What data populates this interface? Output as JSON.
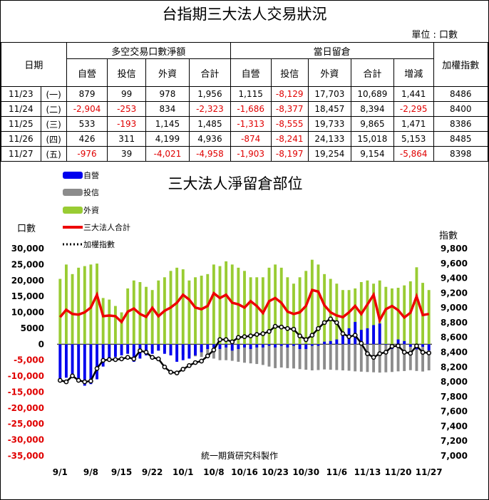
{
  "title": "台指期三大法人交易狀況",
  "unit": "單位 : 口數",
  "table": {
    "date_header": "日期",
    "group1": "多空交易口數淨額",
    "group2": "當日留倉",
    "index_header": "加權指數",
    "sub1": [
      "自營",
      "投信",
      "外資",
      "合計"
    ],
    "sub2": [
      "自營",
      "投信",
      "外資",
      "合計",
      "增減"
    ],
    "rows": [
      {
        "date": "11/23",
        "wd": "(一)",
        "vals": [
          "879",
          "99",
          "978",
          "1,956",
          "1,115",
          "-8,129",
          "17,703",
          "10,689",
          "1,441"
        ],
        "idx": "8486"
      },
      {
        "date": "11/24",
        "wd": "(二)",
        "vals": [
          "-2,904",
          "-253",
          "834",
          "-2,323",
          "-1,686",
          "-8,377",
          "18,457",
          "8,394",
          "-2,295"
        ],
        "idx": "8400"
      },
      {
        "date": "11/25",
        "wd": "(三)",
        "vals": [
          "533",
          "-193",
          "1,145",
          "1,485",
          "-1,313",
          "-8,555",
          "19,733",
          "9,865",
          "1,471"
        ],
        "idx": "8386"
      },
      {
        "date": "11/26",
        "wd": "(四)",
        "vals": [
          "426",
          "311",
          "4,199",
          "4,936",
          "-874",
          "-8,241",
          "24,133",
          "15,018",
          "5,153"
        ],
        "idx": "8485"
      },
      {
        "date": "11/27",
        "wd": "(五)",
        "vals": [
          "-976",
          "39",
          "-4,021",
          "-4,958",
          "-1,903",
          "-8,197",
          "19,254",
          "9,154",
          "-5,864"
        ],
        "idx": "8398"
      }
    ]
  },
  "chart_data": {
    "type": "bar",
    "title": "三大法人淨留倉部位",
    "left_axis_label": "口數",
    "right_axis_label": "指數",
    "left_ylim": [
      -35000,
      30000
    ],
    "right_ylim": [
      7000,
      9800
    ],
    "left_ticks": [
      30000,
      25000,
      20000,
      15000,
      10000,
      5000,
      0,
      -5000,
      -10000,
      -15000,
      -20000,
      -25000,
      -30000,
      -35000
    ],
    "left_tick_labels": [
      "30,000",
      "25,000",
      "20,000",
      "15,000",
      "10,000",
      "5000",
      "0",
      "-5,000",
      "-10,000",
      "-15,000",
      "-20,000",
      "-25,000",
      "-30,000",
      "-35,000"
    ],
    "right_ticks": [
      9800,
      9600,
      9400,
      9200,
      9000,
      8800,
      8600,
      8400,
      8200,
      8000,
      7800,
      7600,
      7400,
      7200,
      7000
    ],
    "right_tick_labels": [
      "9,800",
      "9,600",
      "9,400",
      "9,200",
      "9,000",
      "8,800",
      "8,600",
      "8,400",
      "8,200",
      "8,000",
      "7,800",
      "7,600",
      "7,400",
      "7,200",
      "7,000"
    ],
    "x_tick_labels": [
      "9/1",
      "9/8",
      "9/15",
      "9/22",
      "10/1",
      "10/8",
      "10/16",
      "10/23",
      "10/30",
      "11/6",
      "11/13",
      "11/20",
      "11/27"
    ],
    "x_tick_index": [
      0,
      5,
      10,
      15,
      20,
      25,
      30,
      35,
      40,
      45,
      50,
      55,
      60
    ],
    "legend_placement": "top-left",
    "credit": "統一期貨研究科製作",
    "series": [
      {
        "name": "自營",
        "color": "#0000ee",
        "kind": "bar",
        "values": [
          -11500,
          -10500,
          -9500,
          -11000,
          -13000,
          -12500,
          -11000,
          -7000,
          -5000,
          -4000,
          -3500,
          -3000,
          -5500,
          -4500,
          -3500,
          -3000,
          -2000,
          -3000,
          -3500,
          -5500,
          -5000,
          -4500,
          -3500,
          -2500,
          -1500,
          -1000,
          -1500,
          -1000,
          -2000,
          -1500,
          -1000,
          -1500,
          -1000,
          -1000,
          -500,
          -1000,
          -500,
          -1000,
          -500,
          -1500,
          -1500,
          -500,
          -500,
          800,
          1000,
          1500,
          3000,
          5000,
          7000,
          4500,
          5000,
          6000,
          6500,
          -200,
          -1500,
          1500,
          1000,
          -800,
          -1600,
          -800,
          -1900
        ]
      },
      {
        "name": "投信",
        "color": "#8c8c8c",
        "kind": "bar",
        "values": [
          -600,
          -700,
          -500,
          -800,
          -900,
          -1000,
          -1200,
          -1300,
          -1500,
          -1800,
          -2000,
          -1700,
          -1800,
          -1500,
          -1700,
          -1600,
          -2000,
          -2500,
          -3000,
          -3200,
          -3300,
          -3500,
          -3800,
          -4000,
          -4200,
          -4500,
          -5000,
          -5000,
          -5200,
          -5500,
          -5800,
          -6000,
          -6200,
          -6500,
          -7000,
          -7500,
          -7300,
          -7500,
          -7600,
          -7800,
          -8000,
          -8200,
          -8100,
          -7900,
          -8000,
          -8100,
          -8200,
          -8300,
          -8500,
          -8600,
          -8700,
          -8800,
          -8900,
          -8800,
          -8700,
          -8500,
          -8400,
          -8129,
          -8377,
          -8555,
          -8197
        ]
      },
      {
        "name": "外資",
        "color": "#99cc33",
        "kind": "bar",
        "values": [
          20500,
          25000,
          22000,
          24000,
          24500,
          25000,
          25300,
          14500,
          14000,
          12000,
          10000,
          17500,
          20000,
          19500,
          18000,
          17000,
          20000,
          21000,
          23000,
          24000,
          23500,
          20000,
          21000,
          21500,
          22000,
          25000,
          24500,
          26000,
          25000,
          24000,
          23000,
          21000,
          21000,
          21000,
          24000,
          25000,
          24000,
          21000,
          19000,
          21000,
          23000,
          26500,
          25000,
          22000,
          20500,
          19000,
          17000,
          17000,
          17500,
          19500,
          20000,
          19000,
          20000,
          18000,
          17500,
          17703,
          18457,
          19733,
          24133,
          19254,
          17000
        ]
      },
      {
        "name": "三大法人合計",
        "color": "#ee0000",
        "kind": "line",
        "values": [
          8500,
          10800,
          9500,
          9300,
          10000,
          11500,
          15500,
          8800,
          9000,
          8800,
          7000,
          10200,
          11200,
          9500,
          8600,
          11400,
          8800,
          10500,
          11500,
          13000,
          15500,
          14000,
          11500,
          11000,
          12000,
          16000,
          14500,
          15500,
          13000,
          12500,
          11500,
          13500,
          12000,
          9800,
          13500,
          14500,
          13000,
          10200,
          9500,
          10000,
          12000,
          17000,
          16500,
          12200,
          10000,
          9000,
          8500,
          10000,
          12000,
          9500,
          12500,
          15500,
          7500,
          11000,
          12000,
          10689,
          8394,
          9865,
          15018,
          9154,
          9500
        ]
      },
      {
        "name": "加權指數",
        "color": "#000000",
        "kind": "line-dots",
        "axis": "right",
        "values": [
          8020,
          8000,
          8080,
          8020,
          8000,
          8010,
          8180,
          8290,
          8300,
          8300,
          8310,
          8330,
          8310,
          8420,
          8400,
          8330,
          8310,
          8200,
          8130,
          8120,
          8170,
          8220,
          8260,
          8280,
          8350,
          8430,
          8570,
          8570,
          8540,
          8600,
          8610,
          8620,
          8640,
          8650,
          8680,
          8750,
          8740,
          8720,
          8710,
          8620,
          8570,
          8630,
          8720,
          8800,
          8850,
          8800,
          8650,
          8610,
          8630,
          8520,
          8380,
          8330,
          8380,
          8400,
          8480,
          8486,
          8400,
          8386,
          8485,
          8398,
          8390
        ]
      }
    ]
  }
}
